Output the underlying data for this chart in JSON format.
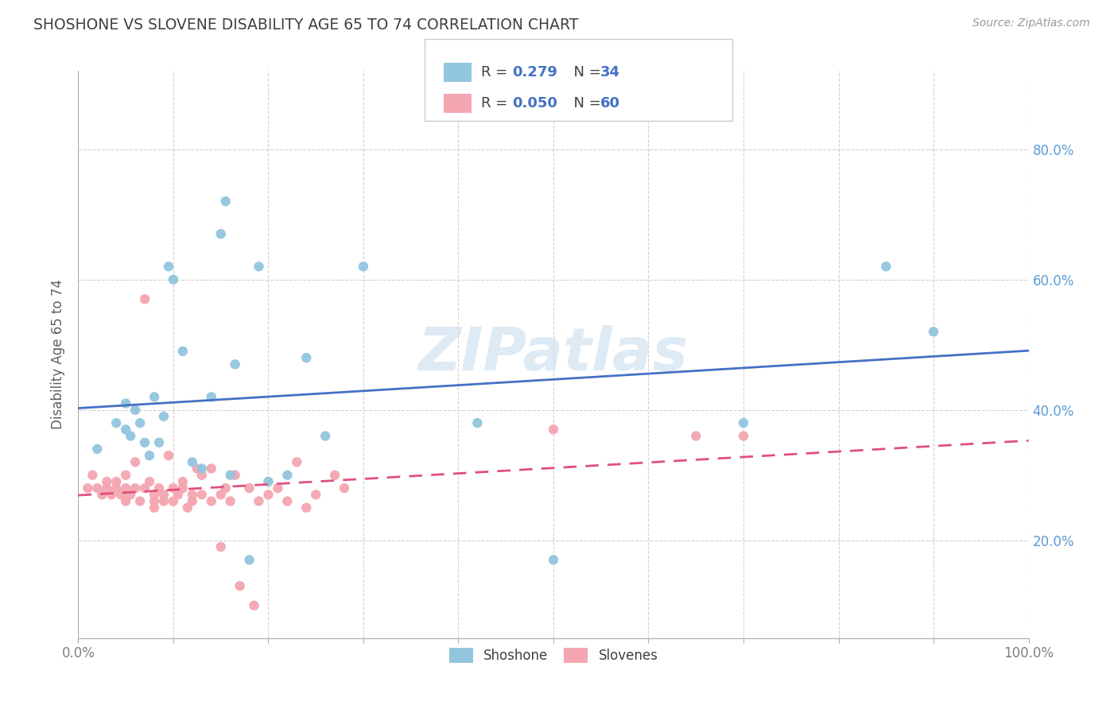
{
  "title": "SHOSHONE VS SLOVENE DISABILITY AGE 65 TO 74 CORRELATION CHART",
  "source_text": "Source: ZipAtlas.com",
  "ylabel": "Disability Age 65 to 74",
  "xlim": [
    0.0,
    1.0
  ],
  "ylim": [
    0.05,
    0.92
  ],
  "xticks": [
    0.0,
    0.1,
    0.2,
    0.3,
    0.4,
    0.5,
    0.6,
    0.7,
    0.8,
    0.9,
    1.0
  ],
  "xtick_labels_show": [
    "0.0%",
    "",
    "",
    "",
    "",
    "",
    "",
    "",
    "",
    "",
    "100.0%"
  ],
  "yticks": [
    0.2,
    0.4,
    0.6,
    0.8
  ],
  "yticklabels": [
    "20.0%",
    "40.0%",
    "60.0%",
    "80.0%"
  ],
  "shoshone_color": "#92C5DE",
  "slovene_color": "#F4A6B0",
  "shoshone_line_color": "#4472C4",
  "slovene_line_color": "#E05080",
  "shoshone_R": 0.279,
  "shoshone_N": 34,
  "slovene_R": 0.05,
  "slovene_N": 60,
  "watermark": "ZIPatlas",
  "shoshone_x": [
    0.02,
    0.04,
    0.05,
    0.05,
    0.055,
    0.06,
    0.065,
    0.07,
    0.075,
    0.08,
    0.085,
    0.09,
    0.095,
    0.1,
    0.11,
    0.12,
    0.13,
    0.14,
    0.15,
    0.155,
    0.16,
    0.165,
    0.18,
    0.19,
    0.2,
    0.22,
    0.24,
    0.26,
    0.3,
    0.42,
    0.5,
    0.7,
    0.85,
    0.9
  ],
  "shoshone_y": [
    0.34,
    0.38,
    0.37,
    0.41,
    0.36,
    0.4,
    0.38,
    0.35,
    0.33,
    0.42,
    0.35,
    0.39,
    0.62,
    0.6,
    0.49,
    0.32,
    0.31,
    0.42,
    0.67,
    0.72,
    0.3,
    0.47,
    0.17,
    0.62,
    0.29,
    0.3,
    0.48,
    0.36,
    0.62,
    0.38,
    0.17,
    0.38,
    0.62,
    0.52
  ],
  "slovene_x": [
    0.01,
    0.015,
    0.02,
    0.025,
    0.03,
    0.03,
    0.035,
    0.04,
    0.04,
    0.045,
    0.05,
    0.05,
    0.05,
    0.055,
    0.06,
    0.06,
    0.065,
    0.07,
    0.07,
    0.075,
    0.08,
    0.08,
    0.08,
    0.085,
    0.09,
    0.09,
    0.095,
    0.1,
    0.1,
    0.105,
    0.11,
    0.11,
    0.115,
    0.12,
    0.12,
    0.125,
    0.13,
    0.13,
    0.14,
    0.14,
    0.15,
    0.15,
    0.155,
    0.16,
    0.165,
    0.17,
    0.18,
    0.185,
    0.19,
    0.2,
    0.21,
    0.22,
    0.23,
    0.24,
    0.25,
    0.27,
    0.28,
    0.5,
    0.65,
    0.7
  ],
  "slovene_y": [
    0.28,
    0.3,
    0.28,
    0.27,
    0.29,
    0.28,
    0.27,
    0.29,
    0.28,
    0.27,
    0.28,
    0.3,
    0.26,
    0.27,
    0.32,
    0.28,
    0.26,
    0.28,
    0.57,
    0.29,
    0.27,
    0.26,
    0.25,
    0.28,
    0.26,
    0.27,
    0.33,
    0.28,
    0.26,
    0.27,
    0.28,
    0.29,
    0.25,
    0.26,
    0.27,
    0.31,
    0.27,
    0.3,
    0.26,
    0.31,
    0.27,
    0.19,
    0.28,
    0.26,
    0.3,
    0.13,
    0.28,
    0.1,
    0.26,
    0.27,
    0.28,
    0.26,
    0.32,
    0.25,
    0.27,
    0.3,
    0.28,
    0.37,
    0.36,
    0.36
  ],
  "background_color": "#ffffff",
  "grid_color": "#cccccc",
  "title_color": "#404040",
  "axis_label_color": "#606060",
  "tick_color_y": "#5B9BD5",
  "tick_color_x": "#808080"
}
